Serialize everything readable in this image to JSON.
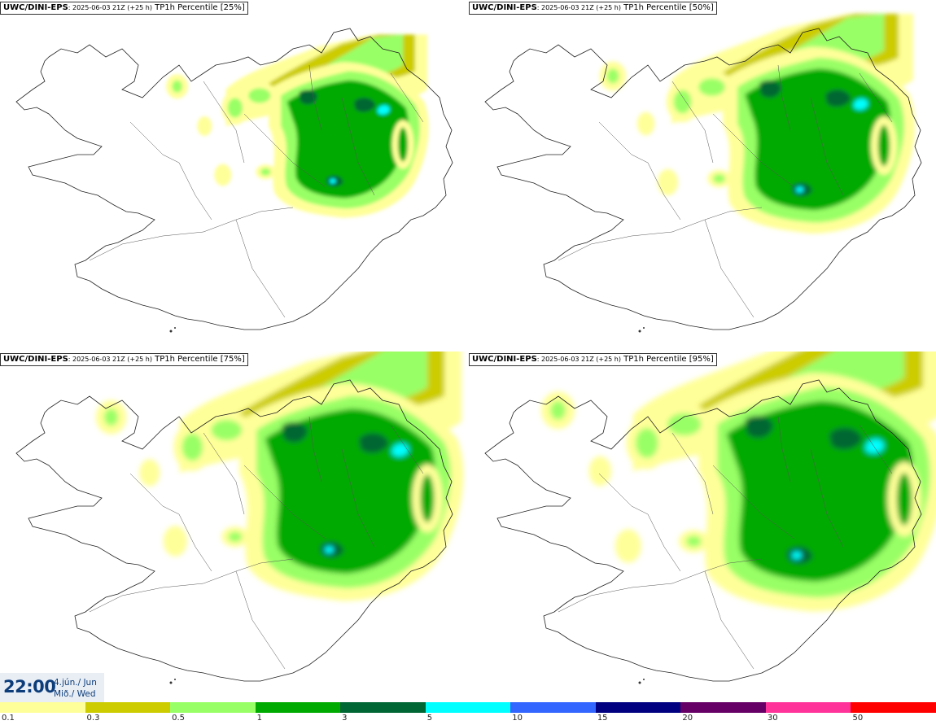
{
  "panels": [
    {
      "source": "UWC/DINI-EPS",
      "run": ": 2025-06-03 21Z (+25 h)",
      "product": " TP1h Percentile [25%]",
      "percentile": 25
    },
    {
      "source": "UWC/DINI-EPS",
      "run": ": 2025-06-03 21Z (+25 h)",
      "product": " TP1h Percentile [50%]",
      "percentile": 50
    },
    {
      "source": "UWC/DINI-EPS",
      "run": ": 2025-06-03 21Z (+25 h)",
      "product": " TP1h Percentile [75%]",
      "percentile": 75
    },
    {
      "source": "UWC/DINI-EPS",
      "run": ": 2025-06-03 21Z (+25 h)",
      "product": " TP1h Percentile [95%]",
      "percentile": 95
    }
  ],
  "valid_time": {
    "time": "22:00",
    "date_line1": "4.jún./ Jun",
    "date_line2": "Mið./ Wed"
  },
  "legend": {
    "labels": [
      "0.1",
      "0.3",
      "0.5",
      "1",
      "3",
      "5",
      "10",
      "15",
      "20",
      "30",
      "50"
    ],
    "colors": [
      "#ffff99",
      "#cccc00",
      "#99ff66",
      "#00aa00",
      "#006633",
      "#00ffff",
      "#3366ff",
      "#000080",
      "#660066",
      "#ff3399",
      "#ff0000"
    ]
  }
}
